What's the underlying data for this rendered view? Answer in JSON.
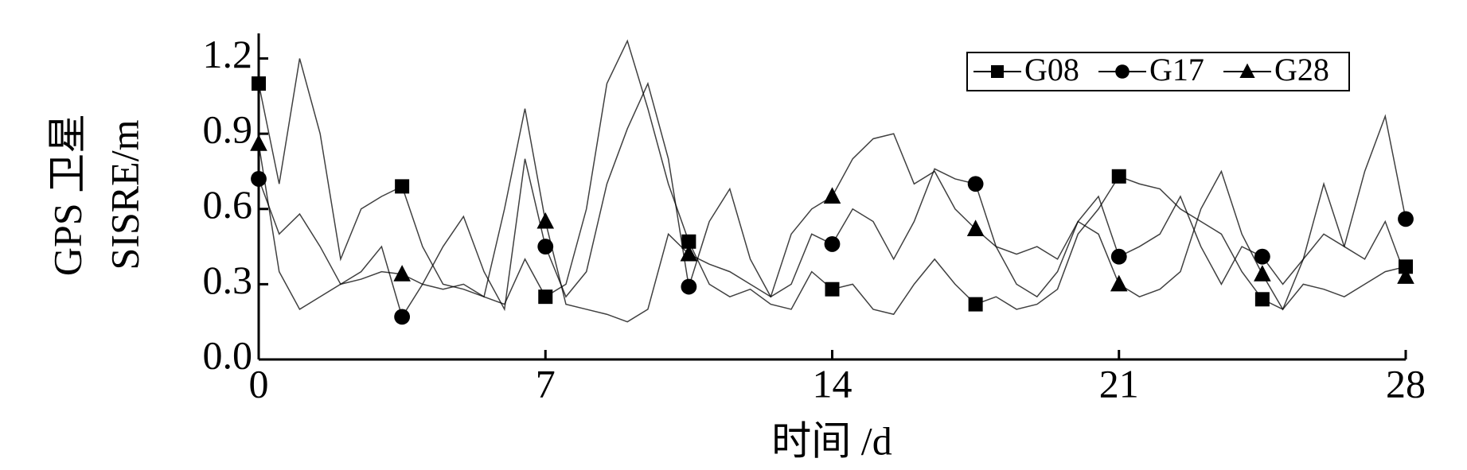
{
  "chart_data": {
    "type": "line",
    "xlabel": "时间 /d",
    "ylabel": [
      "GPS 卫星",
      "SISRE/m"
    ],
    "x": [
      0,
      0.5,
      1,
      1.5,
      2,
      2.5,
      3,
      3.5,
      4,
      4.5,
      5,
      5.5,
      6,
      6.5,
      7,
      7.5,
      8,
      8.5,
      9,
      9.5,
      10,
      10.5,
      11,
      11.5,
      12,
      12.5,
      13,
      13.5,
      14,
      14.5,
      15,
      15.5,
      16,
      16.5,
      17,
      17.5,
      18,
      18.5,
      19,
      19.5,
      20,
      20.5,
      21,
      21.5,
      22,
      22.5,
      23,
      23.5,
      24,
      24.5,
      25,
      25.5,
      26,
      26.5,
      27,
      27.5,
      28
    ],
    "series": [
      {
        "name": "G08",
        "color": "#000000",
        "marker": "square",
        "values": [
          1.1,
          0.7,
          1.2,
          0.9,
          0.4,
          0.6,
          0.65,
          0.69,
          0.45,
          0.3,
          0.28,
          0.25,
          0.22,
          0.4,
          0.25,
          0.3,
          0.6,
          1.1,
          1.27,
          1.0,
          0.7,
          0.47,
          0.3,
          0.25,
          0.28,
          0.22,
          0.2,
          0.35,
          0.28,
          0.3,
          0.2,
          0.18,
          0.3,
          0.4,
          0.3,
          0.22,
          0.25,
          0.2,
          0.22,
          0.28,
          0.5,
          0.6,
          0.73,
          0.7,
          0.68,
          0.6,
          0.55,
          0.5,
          0.35,
          0.24,
          0.2,
          0.3,
          0.28,
          0.25,
          0.3,
          0.35,
          0.37
        ]
      },
      {
        "name": "G17",
        "color": "#000000",
        "marker": "circle",
        "values": [
          0.72,
          0.5,
          0.58,
          0.45,
          0.3,
          0.35,
          0.45,
          0.17,
          0.3,
          0.45,
          0.57,
          0.35,
          0.2,
          0.8,
          0.45,
          0.25,
          0.35,
          0.7,
          0.92,
          1.1,
          0.8,
          0.29,
          0.55,
          0.68,
          0.4,
          0.25,
          0.3,
          0.5,
          0.46,
          0.6,
          0.55,
          0.4,
          0.55,
          0.76,
          0.72,
          0.7,
          0.45,
          0.3,
          0.25,
          0.35,
          0.55,
          0.65,
          0.41,
          0.45,
          0.5,
          0.65,
          0.45,
          0.3,
          0.45,
          0.41,
          0.3,
          0.4,
          0.5,
          0.45,
          0.75,
          0.97,
          0.56
        ]
      },
      {
        "name": "G28",
        "color": "#000000",
        "marker": "triangle",
        "values": [
          0.86,
          0.35,
          0.2,
          0.25,
          0.3,
          0.32,
          0.35,
          0.34,
          0.3,
          0.28,
          0.3,
          0.25,
          0.6,
          1.0,
          0.55,
          0.22,
          0.2,
          0.18,
          0.15,
          0.2,
          0.5,
          0.42,
          0.38,
          0.35,
          0.3,
          0.25,
          0.5,
          0.6,
          0.65,
          0.8,
          0.88,
          0.9,
          0.7,
          0.75,
          0.6,
          0.52,
          0.45,
          0.42,
          0.45,
          0.4,
          0.55,
          0.5,
          0.3,
          0.25,
          0.28,
          0.35,
          0.6,
          0.75,
          0.5,
          0.34,
          0.2,
          0.4,
          0.7,
          0.45,
          0.4,
          0.55,
          0.33
        ]
      }
    ],
    "xlim": [
      0,
      28
    ],
    "xticks": [
      0,
      7,
      14,
      21,
      28
    ],
    "ylim": [
      0,
      1.3
    ],
    "yticks": [
      {
        "value": 0,
        "label": "0.0"
      },
      0.3,
      0.6,
      0.9,
      1.2
    ],
    "legend": "top-right",
    "grid": false
  }
}
